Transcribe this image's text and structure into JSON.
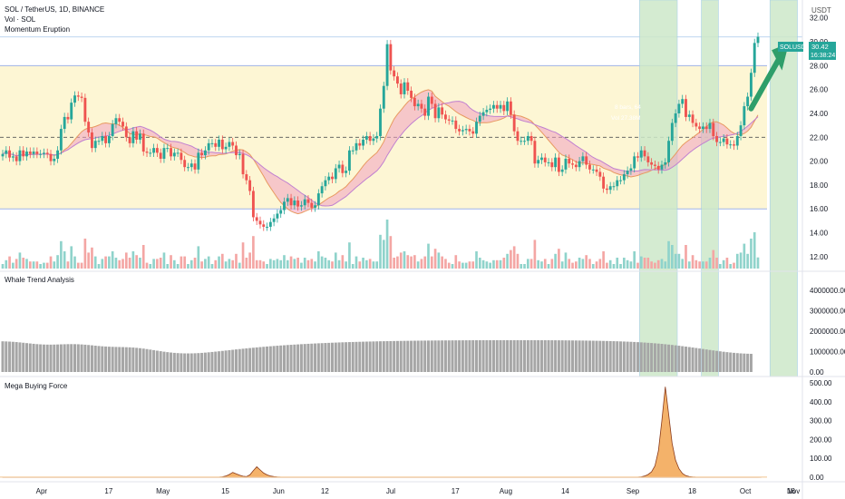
{
  "header": {
    "symbol_line": "SOL / TetherUS, 1D, BINANCE",
    "indicator_1": "Vol · SOL",
    "indicator_2": "Momentum Eruption"
  },
  "price_axis": {
    "currency_label": "USDT",
    "ticks": [
      "32.00",
      "30.00",
      "28.00",
      "26.00",
      "24.00",
      "22.00",
      "20.00",
      "18.00",
      "16.00",
      "14.00",
      "12.00"
    ],
    "symbol_badge": "SOLUSDT",
    "last_price": "30.42",
    "countdown": "16:38:24"
  },
  "panels": {
    "whale": {
      "title": "Whale Trend Analysis",
      "ticks": [
        "4000000.00",
        "3000000.00",
        "2000000.00",
        "1000000.00",
        "0.00"
      ]
    },
    "mega": {
      "title": "Mega Buying Force",
      "ticks": [
        "500.00",
        "400.00",
        "300.00",
        "200.00",
        "100.00",
        "0.00"
      ]
    }
  },
  "time_axis": [
    "Apr",
    "17",
    "May",
    "15",
    "Jun",
    "12",
    "Jul",
    "17",
    "Aug",
    "14",
    "Sep",
    "18",
    "Oct",
    "16",
    "Nov"
  ],
  "annotations": {
    "bars_label": "8 bars, 64",
    "vol_label": "Vol 27.38M"
  },
  "colors": {
    "up": "#26a69a",
    "down": "#ef5350",
    "range_fill": "#fdf6d4",
    "highlight_green": "#cde8c9",
    "arrow": "#2e9e6a",
    "whale_gray": "#a6a6a6",
    "whale_cyan": "#22c7e5",
    "whale_red": "#e03050",
    "whale_lightgreen": "#a8dc8c",
    "mega_brown": "#8a3a1a",
    "mega_orange": "#f4b26a"
  },
  "chart_data": [
    {
      "type": "candlestick",
      "title": "SOL / TetherUS, 1D, BINANCE",
      "ylabel": "USDT",
      "ylim": [
        11,
        33.5
      ],
      "range_box": {
        "low": 16.0,
        "high": 28.0
      },
      "reference_lines": [
        22.0,
        30.4
      ],
      "values_close": [
        20.6,
        20.9,
        20.3,
        20.4,
        20.0,
        20.9,
        20.4,
        20.8,
        20.6,
        20.8,
        20.6,
        20.6,
        20.7,
        20.6,
        20.0,
        20.2,
        20.9,
        22.7,
        23.7,
        23.5,
        24.9,
        25.5,
        25.4,
        25.3,
        23.3,
        22.4,
        21.1,
        21.7,
        21.7,
        22.1,
        21.5,
        22.1,
        23.1,
        23.6,
        23.3,
        22.9,
        22.0,
        21.5,
        22.5,
        21.8,
        22.3,
        20.8,
        20.7,
        20.7,
        21.1,
        20.7,
        20.2,
        21.1,
        21.1,
        20.4,
        20.7,
        20.7,
        20.1,
        19.5,
        19.5,
        19.8,
        19.3,
        20.7,
        20.5,
        20.9,
        21.5,
        21.5,
        21.2,
        21.8,
        21.0,
        21.2,
        21.6,
        21.3,
        20.5,
        20.6,
        18.9,
        18.4,
        17.5,
        15.3,
        15.0,
        14.7,
        14.5,
        14.5,
        14.9,
        15.2,
        15.6,
        15.9,
        16.6,
        16.9,
        16.3,
        16.7,
        16.2,
        16.3,
        16.8,
        16.5,
        16.1,
        16.3,
        17.3,
        17.9,
        18.4,
        18.7,
        18.5,
        19.4,
        19.7,
        19.0,
        19.2,
        20.9,
        20.9,
        21.5,
        21.3,
        21.8,
        22.1,
        21.7,
        21.9,
        22.1,
        24.4,
        26.3,
        29.8,
        27.6,
        27.1,
        26.5,
        25.6,
        26.6,
        25.9,
        25.3,
        24.6,
        24.8,
        24.4,
        23.8,
        25.4,
        24.8,
        23.6,
        24.5,
        23.9,
        23.5,
        23.4,
        23.4,
        22.7,
        22.5,
        22.6,
        22.7,
        22.5,
        22.3,
        23.3,
        23.8,
        24.1,
        24.3,
        24.4,
        24.7,
        24.4,
        24.7,
        24.2,
        25.0,
        23.9,
        22.5,
        21.7,
        21.7,
        21.7,
        22.1,
        21.7,
        19.8,
        20.1,
        20.3,
        19.9,
        19.9,
        19.5,
        20.3,
        19.1,
        19.3,
        20.2,
        19.8,
        19.7,
        19.5,
        20.0,
        20.4,
        19.7,
        19.3,
        19.3,
        19.1,
        18.7,
        17.7,
        17.6,
        17.9,
        17.9,
        18.4,
        18.4,
        18.9,
        19.2,
        19.4,
        20.4,
        20.3,
        20.9,
        20.4,
        19.9,
        19.7,
        19.6,
        19.3,
        19.7,
        19.9,
        21.7,
        23.2,
        24.0,
        24.8,
        25.2,
        23.7,
        23.9,
        23.2,
        22.9,
        22.7,
        22.9,
        22.7,
        23.2,
        22.1,
        21.6,
        21.6,
        21.9,
        21.4,
        21.4,
        21.3,
        22.1,
        23.0,
        24.6,
        25.4,
        27.4,
        29.9,
        30.42
      ],
      "last_price": 30.42
    },
    {
      "type": "bar",
      "title": "Whale Trend Analysis",
      "ylim": [
        0,
        4800000
      ],
      "values": [
        1502000,
        1496000,
        1488000,
        1478000,
        1465000,
        1449000,
        1432000,
        1414000,
        1397000,
        1380000,
        1365000,
        1354000,
        1345000,
        1341000,
        1340000,
        1343000,
        1348000,
        1354000,
        1359000,
        1364000,
        1365000,
        1364000,
        1358000,
        1349000,
        1337000,
        1322000,
        1306000,
        1289000,
        1273000,
        1259000,
        1248000,
        1239000,
        1232000,
        1227000,
        1223000,
        1219000,
        1214000,
        1207000,
        1197000,
        1183000,
        1166000,
        1146000,
        1122000,
        1097000,
        1071000,
        1044000,
        1018000,
        994000,
        972000,
        953000,
        937000,
        925000,
        916000,
        911000,
        910000,
        912000,
        917000,
        925000,
        936000,
        949000,
        964000,
        980000,
        997000,
        1014000,
        1033000,
        1051000,
        1069000,
        1087000,
        1105000,
        1122000,
        1140000,
        1156000,
        1173000,
        1188000,
        1204000,
        1219000,
        1233000,
        1247000,
        1260000,
        1273000,
        1286000,
        1298000,
        1309000,
        1321000,
        1331000,
        1342000,
        1352000,
        1362000,
        1371000,
        1380000,
        1388000,
        1397000,
        1405000,
        1412000,
        1420000,
        1427000,
        1434000,
        1440000,
        1447000,
        1453000,
        1458000,
        1464000,
        1469000,
        1474000,
        1479000,
        1484000,
        1488000,
        1492000,
        1496000,
        1500000,
        1504000,
        1507000,
        1510000,
        1514000,
        1517000,
        1520000,
        1522000,
        1525000,
        1527000,
        1530000,
        1532000,
        1534000,
        1536000,
        1538000,
        1540000,
        1541000,
        1543000,
        1544000,
        1546000,
        1547000,
        1548000,
        1549000,
        1550000,
        1551000,
        1552000,
        1553000,
        1554000,
        1555000,
        1555000,
        1556000,
        1556000,
        1557000,
        1557000,
        1558000,
        1558000,
        1558000,
        1558000,
        1559000,
        1559000,
        1559000,
        1559000,
        1558000,
        1558000,
        1558000,
        1558000,
        1557000,
        1557000,
        1556000,
        1555000,
        1555000,
        1554000,
        1553000,
        1552000,
        1551000,
        1549000,
        1548000,
        1546000,
        1544000,
        1542000,
        1540000,
        1538000,
        1535000,
        1532000,
        1529000,
        1526000,
        1522000,
        1518000,
        1514000,
        1509000,
        1504000,
        1498000,
        1492000,
        1485000,
        1478000,
        1470000,
        1461000,
        1452000,
        1441000,
        1430000,
        1418000,
        1405000,
        1391000,
        1376000,
        1360000,
        1343000,
        1325000,
        1306000,
        1286000,
        1265000,
        1243000,
        1221000,
        1198000,
        1175000,
        1151000,
        1127000,
        1103000,
        1079000,
        1056000,
        1034000,
        1012000,
        991000,
        972000,
        954000,
        938000,
        924000,
        912000,
        902000,
        895000,
        890000
      ]
    },
    {
      "type": "area",
      "title": "Mega Buying Force",
      "ylim": [
        -10,
        520
      ],
      "values": [
        0,
        0,
        0,
        0,
        0,
        0,
        0,
        0,
        0,
        0,
        0,
        0,
        0,
        0,
        0,
        0,
        0,
        0,
        0,
        0,
        0,
        0,
        0,
        0,
        0,
        0,
        0,
        0,
        0,
        0,
        0,
        0,
        0,
        0,
        0,
        0,
        0,
        0,
        0,
        0,
        0,
        0,
        0,
        0,
        0,
        0,
        0,
        0,
        0,
        0,
        0,
        0,
        0,
        0,
        0,
        0,
        0,
        0,
        0,
        0,
        0,
        0,
        0,
        0,
        2,
        6,
        14,
        25,
        18,
        10,
        5,
        3,
        12,
        35,
        55,
        38,
        22,
        12,
        6,
        3,
        1,
        0,
        0,
        0,
        0,
        0,
        0,
        0,
        0,
        0,
        0,
        0,
        0,
        0,
        0,
        0,
        0,
        0,
        0,
        0,
        0,
        0,
        0,
        0,
        0,
        0,
        0,
        0,
        0,
        0,
        0,
        0,
        0,
        0,
        0,
        0,
        0,
        0,
        0,
        0,
        0,
        0,
        0,
        0,
        0,
        0,
        0,
        0,
        0,
        0,
        0,
        0,
        0,
        0,
        0,
        0,
        0,
        0,
        0,
        0,
        0,
        0,
        0,
        0,
        0,
        0,
        0,
        0,
        0,
        0,
        0,
        0,
        0,
        0,
        0,
        0,
        0,
        0,
        0,
        0,
        0,
        0,
        0,
        0,
        0,
        0,
        0,
        0,
        0,
        0,
        0,
        0,
        0,
        0,
        0,
        0,
        0,
        0,
        0,
        0,
        0,
        0,
        0,
        0,
        0,
        0,
        2,
        6,
        14,
        28,
        60,
        140,
        300,
        480,
        330,
        180,
        90,
        45,
        20,
        8,
        3,
        1,
        0,
        0,
        0,
        0,
        0,
        0,
        0,
        0,
        0,
        0,
        0,
        0,
        0,
        0,
        0,
        0,
        0,
        0,
        0,
        0
      ]
    }
  ]
}
